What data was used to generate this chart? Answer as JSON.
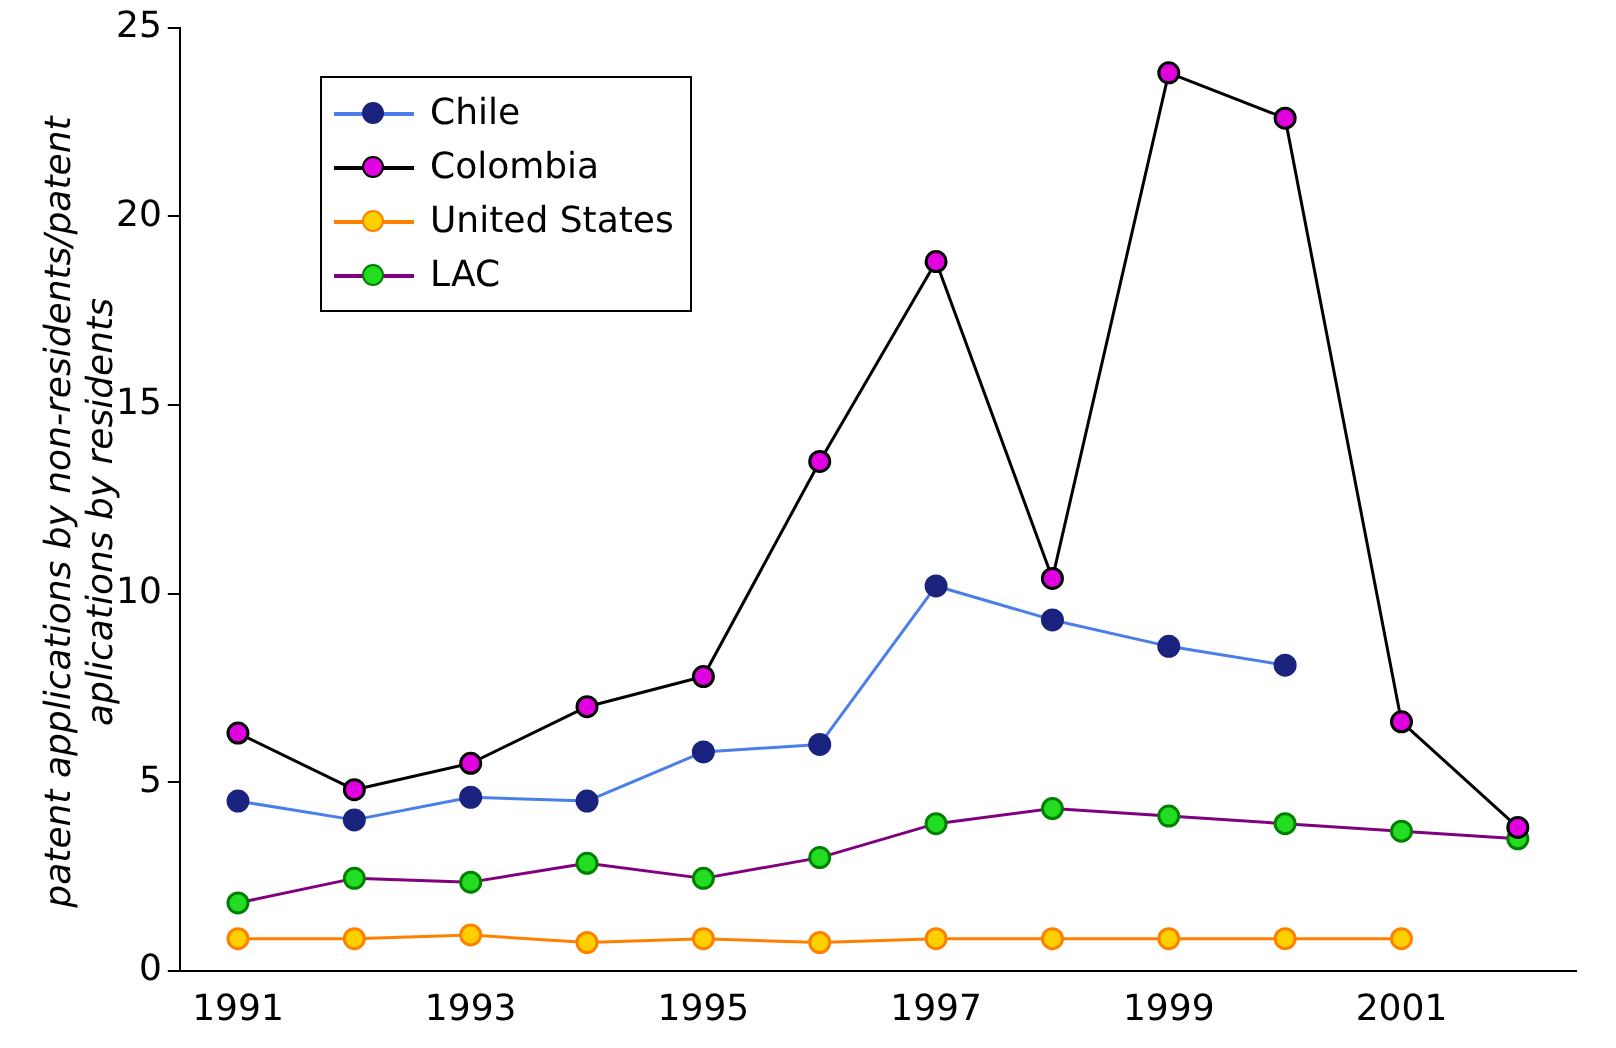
{
  "chart_data": {
    "type": "line",
    "ylabel": "patent applications by non-residents/patent aplications by residents",
    "categories": [
      "1991",
      null,
      "1993",
      null,
      "1995",
      null,
      "1997",
      null,
      "1999",
      null,
      "2001",
      null
    ],
    "series": [
      {
        "name": "Chile",
        "color": "#4a7ee8",
        "values": [
          4.5,
          4.0,
          4.6,
          4.5,
          5.8,
          6.0,
          10.2,
          9.3,
          8.6,
          8.1,
          null,
          null
        ]
      },
      {
        "name": "Colombia",
        "color": "#000000",
        "values": [
          6.3,
          4.8,
          5.5,
          7.0,
          7.8,
          13.5,
          18.8,
          10.4,
          23.8,
          22.6,
          6.6,
          3.8
        ]
      },
      {
        "name": "United States",
        "color": "#ff8000",
        "values": [
          0.85,
          0.85,
          0.95,
          0.75,
          0.85,
          0.75,
          0.85,
          0.85,
          0.85,
          0.85,
          0.85,
          null
        ]
      },
      {
        "name": "LAC",
        "color": "#800080",
        "values": [
          1.8,
          2.45,
          2.35,
          2.85,
          2.45,
          3.0,
          3.9,
          4.3,
          4.1,
          3.9,
          3.7,
          3.5
        ]
      }
    ],
    "ylim": [
      0,
      25
    ],
    "yticks": [
      0,
      5,
      10,
      15,
      20,
      25
    ],
    "grid": false,
    "legend": "top left",
    "marker": "circle",
    "line_style": "solid"
  }
}
